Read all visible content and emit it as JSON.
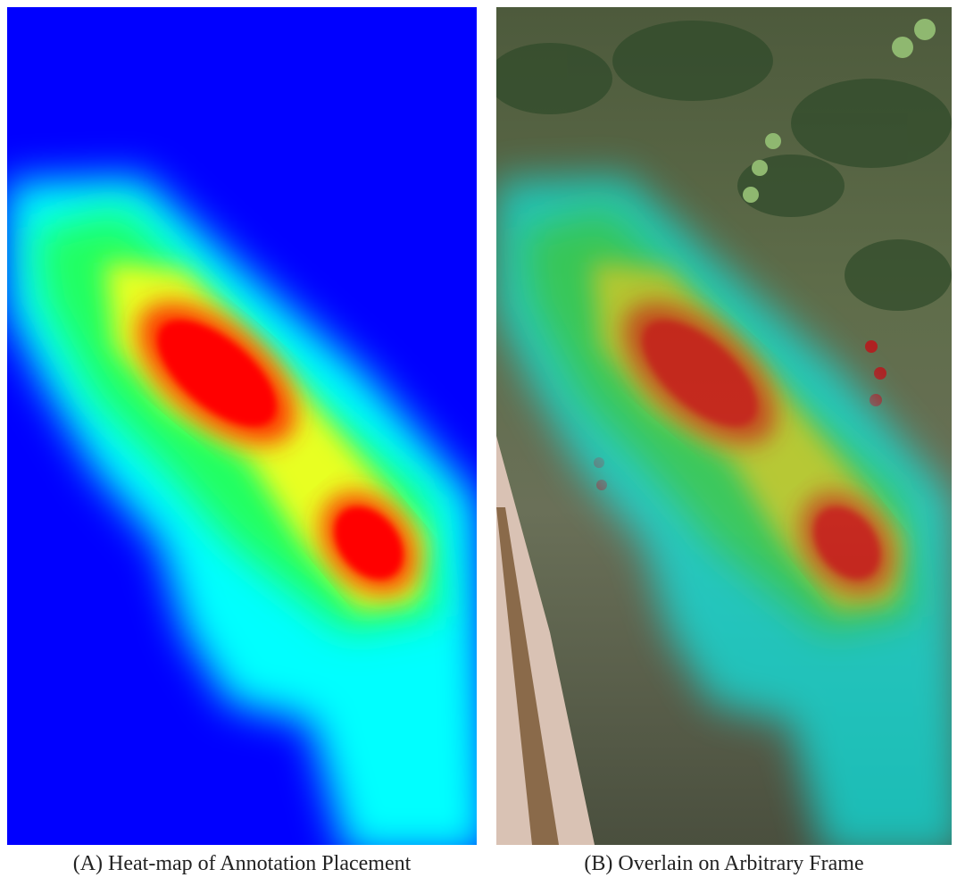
{
  "figure": {
    "panels": [
      {
        "caption": "(A) Heat-map of Annotation Placement"
      },
      {
        "caption": "(B) Overlain on Arbitrary Frame"
      }
    ]
  }
}
